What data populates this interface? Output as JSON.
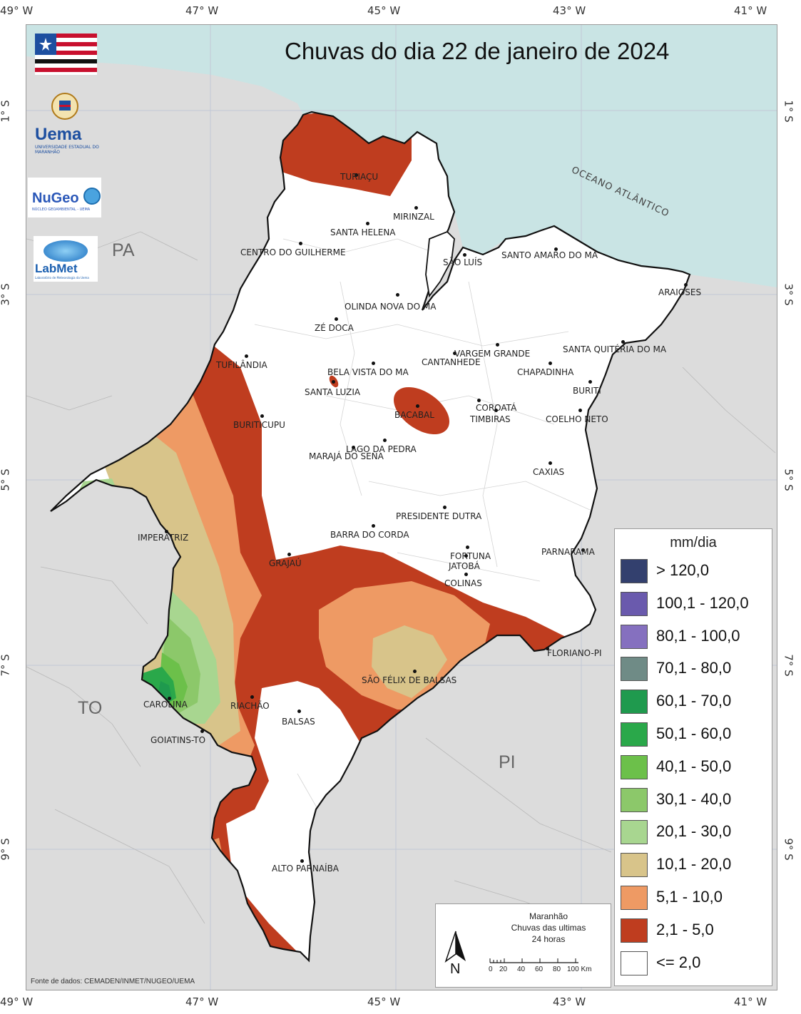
{
  "title": "Chuvas do dia 22 de janeiro de 2024",
  "grid_labels": {
    "top": [
      "49° W",
      "47° W",
      "45° W",
      "43° W",
      "41° W"
    ],
    "bottom": [
      "49° W",
      "47° W",
      "45° W",
      "43° W",
      "41° W"
    ],
    "left": [
      "1° S",
      "3° S",
      "5° S",
      "7° S",
      "9° S"
    ],
    "right": [
      "1° S",
      "3° S",
      "5° S",
      "7° S",
      "9° S"
    ]
  },
  "state_labels": {
    "pa": "PA",
    "to": "TO",
    "pi": "PI"
  },
  "ocean_label": "OCEANO ATLÂNTICO",
  "cities": [
    {
      "name": "TURIAÇU"
    },
    {
      "name": "MIRINZAL"
    },
    {
      "name": "SANTA HELENA"
    },
    {
      "name": "CENTRO DO GUILHERME"
    },
    {
      "name": "SÃO LUÍS"
    },
    {
      "name": "SANTO AMARO DO MA"
    },
    {
      "name": "ARAIOSES"
    },
    {
      "name": "OLINDA NOVA DO MA"
    },
    {
      "name": "ZÉ DOCA"
    },
    {
      "name": "TUFILÂNDIA"
    },
    {
      "name": "BELA VISTA DO MA"
    },
    {
      "name": "SANTA LUZIA"
    },
    {
      "name": "CANTANHEDE"
    },
    {
      "name": "VARGEM GRANDE"
    },
    {
      "name": "SANTA QUITÉRIA DO MA"
    },
    {
      "name": "CHAPADINHA"
    },
    {
      "name": "BURITI"
    },
    {
      "name": "BACABAL"
    },
    {
      "name": "COROATÁ"
    },
    {
      "name": "TIMBIRAS"
    },
    {
      "name": "COELHO NETO"
    },
    {
      "name": "BURITICUPU"
    },
    {
      "name": "LAGO DA PEDRA"
    },
    {
      "name": "MARAJÁ DO SENA"
    },
    {
      "name": "CAXIAS"
    },
    {
      "name": "PRESIDENTE DUTRA"
    },
    {
      "name": "BARRA DO CORDA"
    },
    {
      "name": "IMPERATRIZ"
    },
    {
      "name": "GRAJAÚ"
    },
    {
      "name": "FORTUNA"
    },
    {
      "name": "JATOBÁ"
    },
    {
      "name": "PARNARAMA"
    },
    {
      "name": "COLINAS"
    },
    {
      "name": "FLORIANO-PI"
    },
    {
      "name": "SÃO FÉLIX DE BALSAS"
    },
    {
      "name": "CAROLINA"
    },
    {
      "name": "RIACHÃO"
    },
    {
      "name": "BALSAS"
    },
    {
      "name": "GOIATINS-TO"
    },
    {
      "name": "ALTO PARNAÍBA"
    }
  ],
  "legend": {
    "title": "mm/dia",
    "items": [
      {
        "label": "> 120,0",
        "color": "#33406e"
      },
      {
        "label": "100,1 - 120,0",
        "color": "#6a5aad"
      },
      {
        "label": "80,1 - 100,0",
        "color": "#8570bf"
      },
      {
        "label": "70,1 - 80,0",
        "color": "#6f8b86"
      },
      {
        "label": "60,1 - 70,0",
        "color": "#1f9a4e"
      },
      {
        "label": "50,1 - 60,0",
        "color": "#2aa84a"
      },
      {
        "label": "40,1 - 50,0",
        "color": "#6cc04a"
      },
      {
        "label": "30,1 - 40,0",
        "color": "#8cc86a"
      },
      {
        "label": "20,1 - 30,0",
        "color": "#a8d690"
      },
      {
        "label": "10,1 - 20,0",
        "color": "#d8c48a"
      },
      {
        "label": "5,1 - 10,0",
        "color": "#ee9a64"
      },
      {
        "label": "2,1 - 5,0",
        "color": "#bf3d1f"
      },
      {
        "label": "<= 2,0",
        "color": "#ffffff"
      }
    ]
  },
  "scalebar": {
    "line1": "Maranhão",
    "line2": "Chuvas das ultimas",
    "line3": "24 horas",
    "north": "N",
    "ticks": [
      "0",
      "20",
      "40",
      "60",
      "80",
      "100 Km"
    ]
  },
  "logos": {
    "uema": "Uema",
    "uema_sub": "UNIVERSIDADE ESTADUAL DO MARANHÃO",
    "nugeo": "NuGeo",
    "nugeo_sub": "NÚCLEO GEOAMBIENTAL - UEMA",
    "labmet": "LabMet",
    "labmet_sub": "Laboratório de Meteorologia da Uema"
  },
  "source": "Fonte de dados: CEMADEN/INMET/NUGEO/UEMA"
}
